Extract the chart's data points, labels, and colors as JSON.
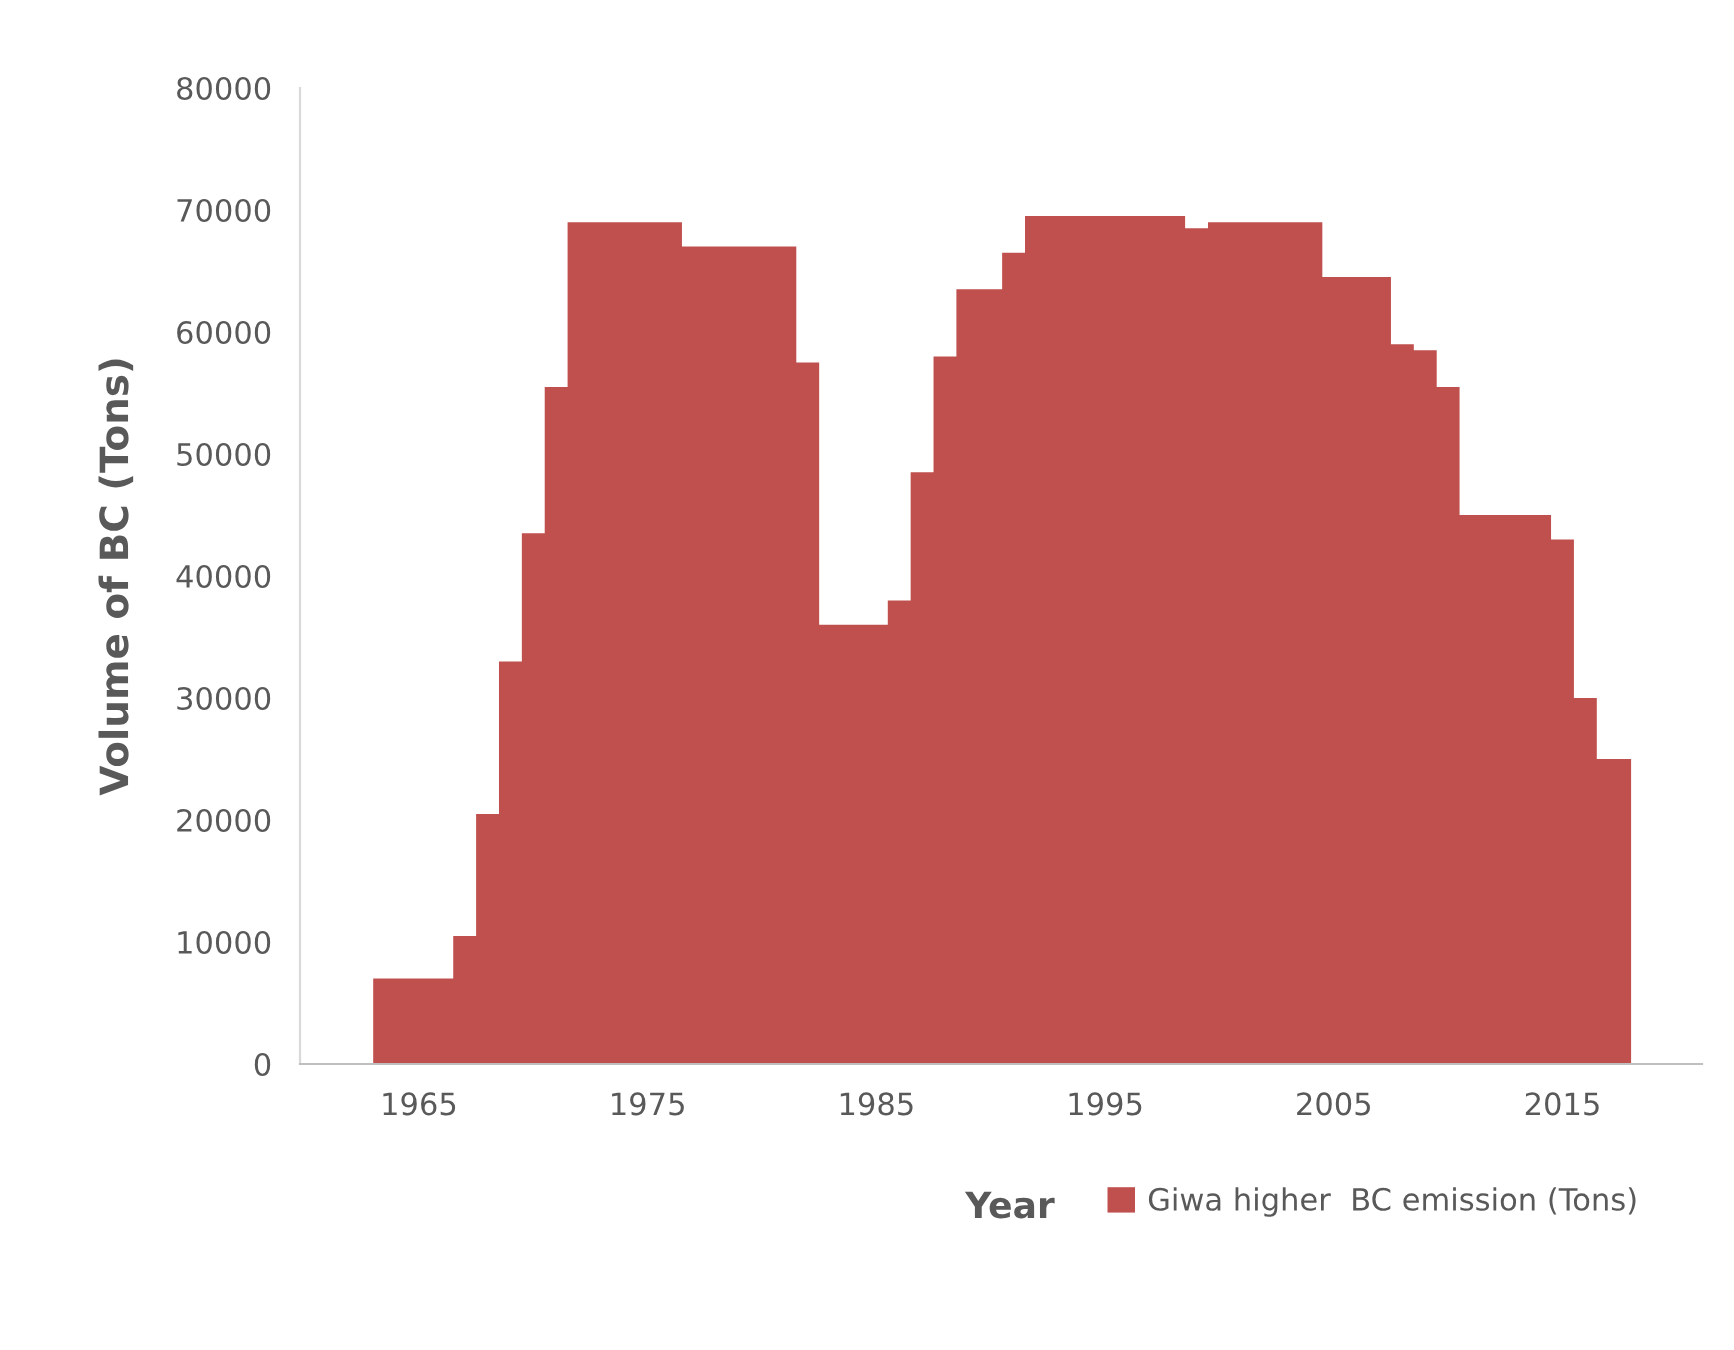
{
  "chart_data": {
    "type": "area",
    "xlabel": "Year",
    "ylabel": "Volume of BC (Tons)",
    "categories": [
      null,
      null,
      "1965",
      null,
      null,
      null,
      null,
      null,
      null,
      null,
      null,
      null,
      "1975",
      null,
      null,
      null,
      null,
      null,
      null,
      null,
      null,
      null,
      "1985",
      null,
      null,
      null,
      null,
      null,
      null,
      null,
      null,
      null,
      "1995",
      null,
      null,
      null,
      null,
      null,
      null,
      null,
      null,
      null,
      "2005",
      null,
      null,
      null,
      null,
      null,
      null,
      null,
      null,
      null,
      "2015",
      null,
      null,
      null
    ],
    "series": [
      {
        "name": "Giwa higher  BC emission (Tons)",
        "color": "#c0504d",
        "values": [
          7000,
          7000,
          7000,
          7000,
          10500,
          20500,
          33000,
          43500,
          55500,
          69000,
          69000,
          69000,
          69000,
          69000,
          67000,
          67000,
          67000,
          67000,
          67000,
          57500,
          36000,
          36000,
          36000,
          38000,
          48500,
          58000,
          63500,
          63500,
          66500,
          69500,
          69500,
          69500,
          69500,
          69500,
          69500,
          69500,
          68500,
          69000,
          69000,
          69000,
          69000,
          69000,
          64500,
          64500,
          64500,
          59000,
          58500,
          55500,
          45000,
          45000,
          45000,
          45000,
          43000,
          30000,
          25000,
          25000
        ]
      }
    ],
    "ylim": [
      0,
      80000
    ],
    "yticks": [
      0,
      10000,
      20000,
      30000,
      40000,
      50000,
      60000,
      70000,
      80000
    ],
    "grid": false,
    "legend": "bottom"
  }
}
